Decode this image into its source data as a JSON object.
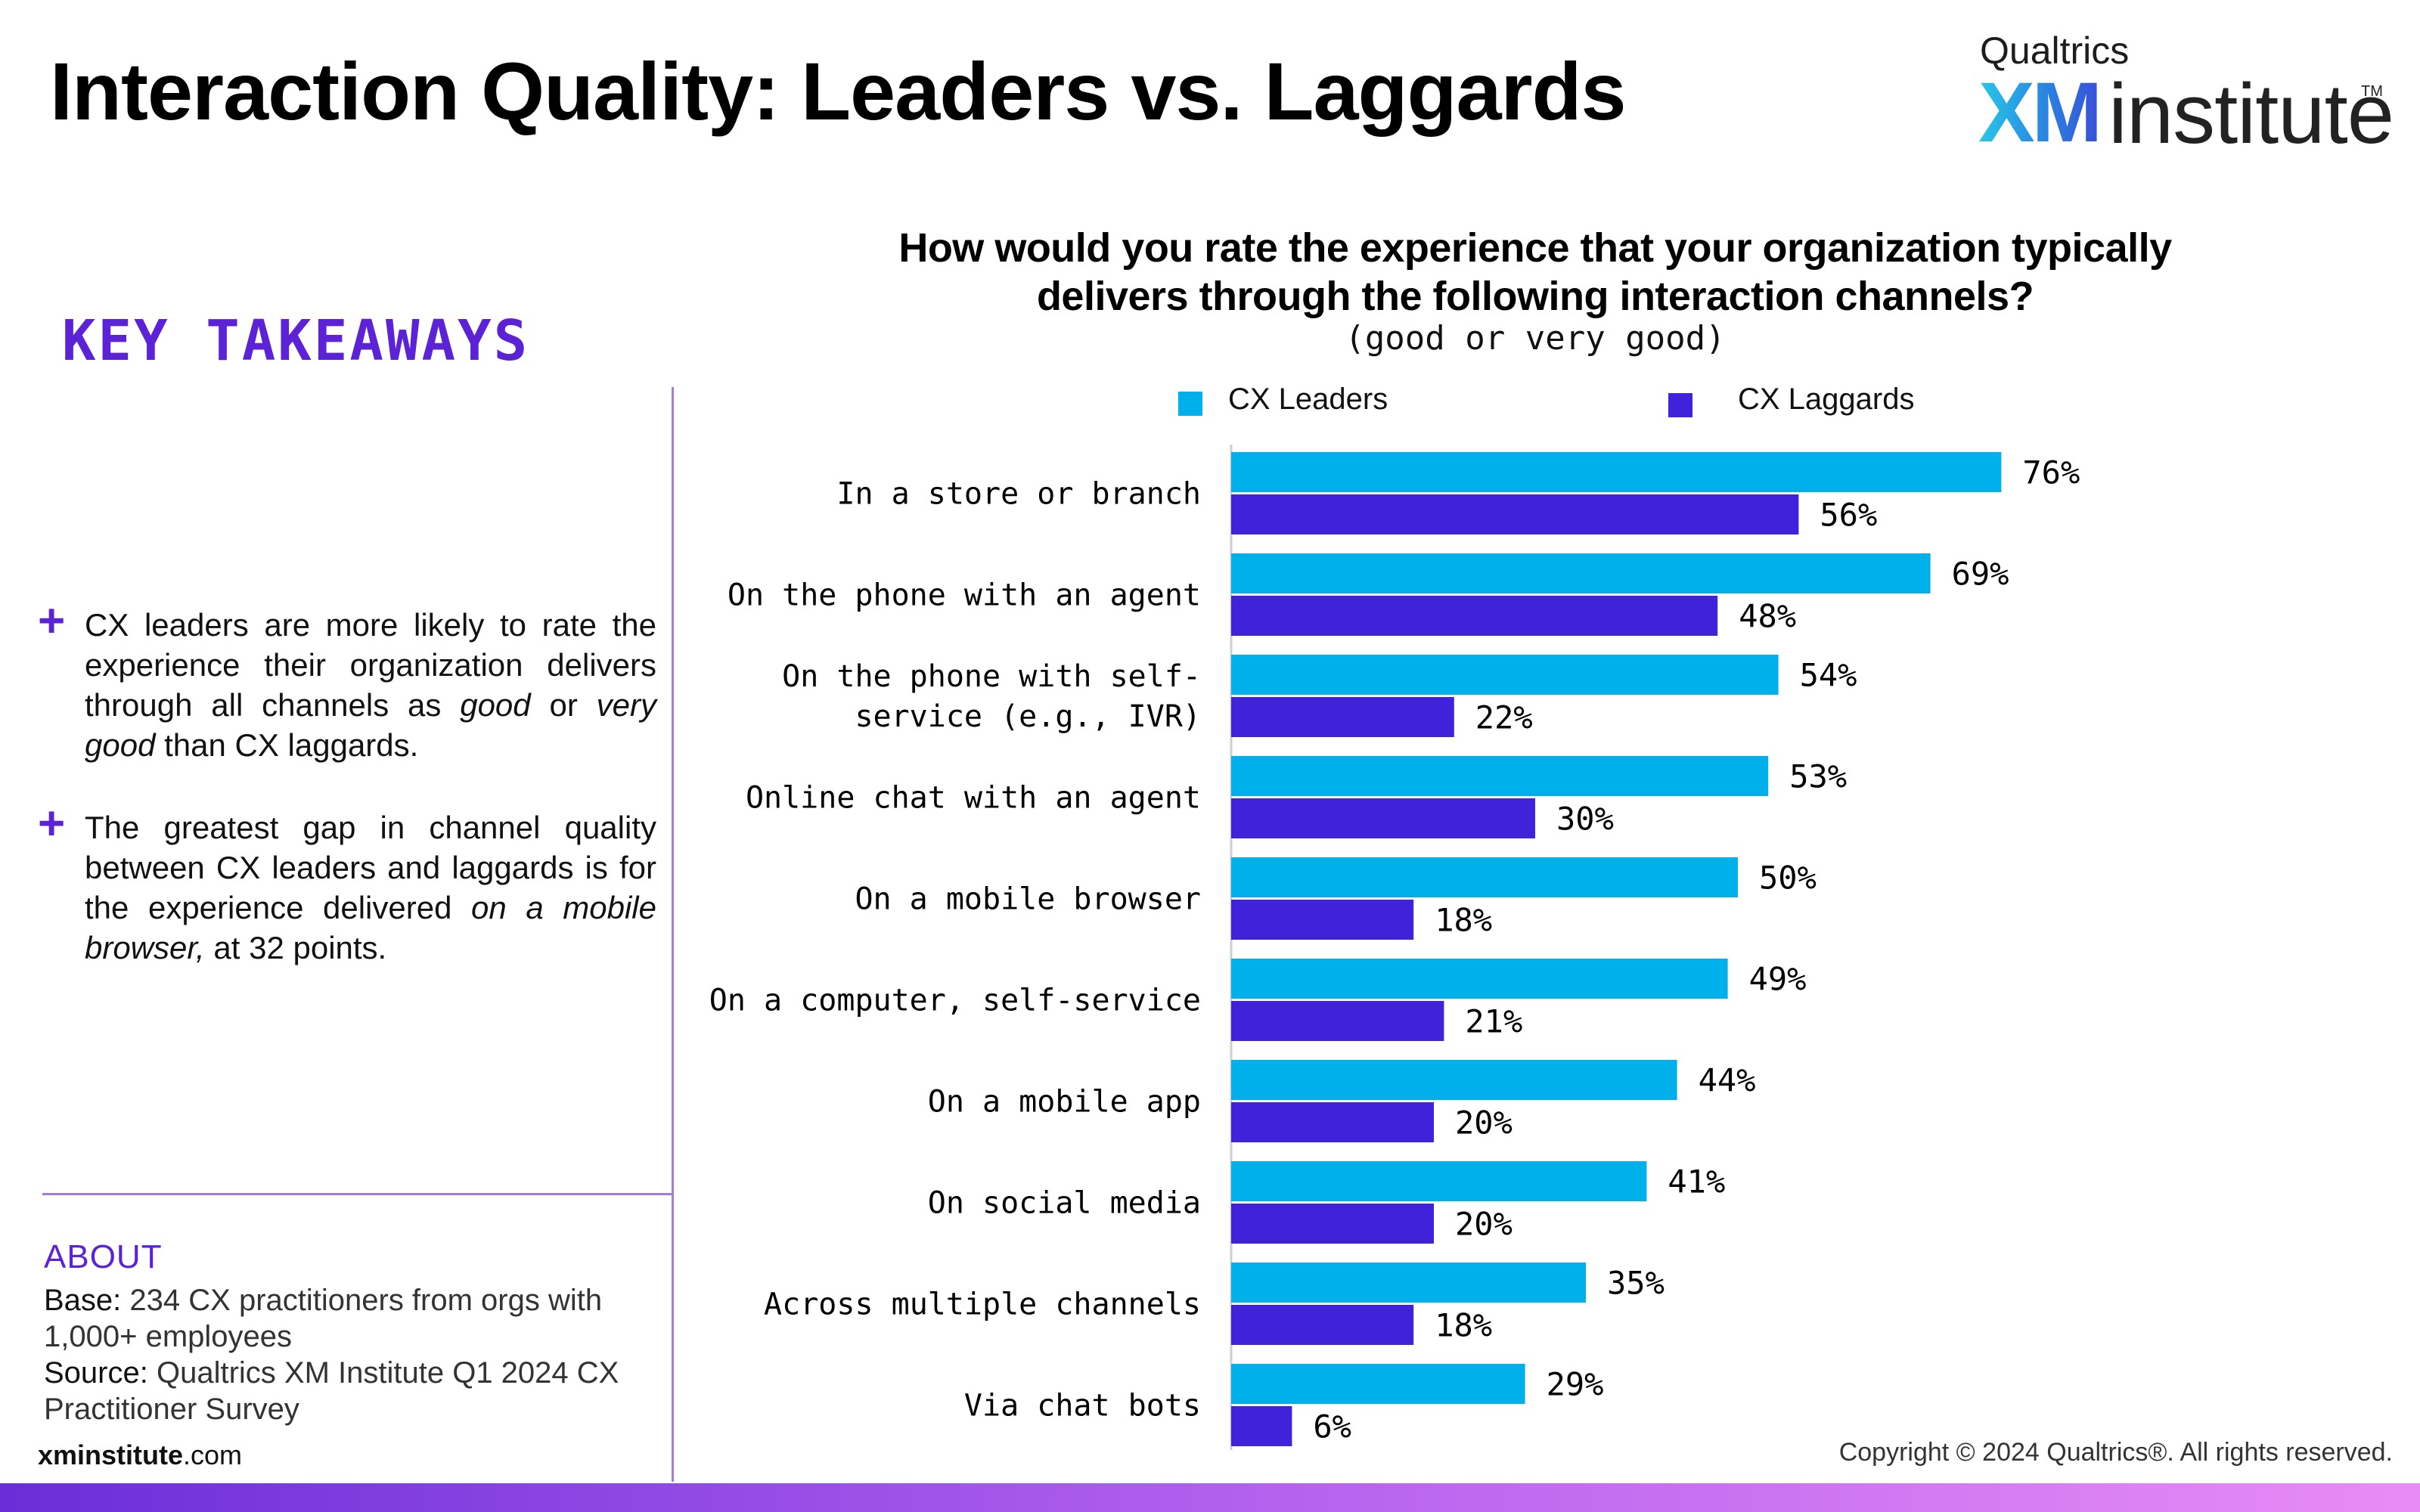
{
  "header": {
    "title": "Interaction Quality: Leaders vs. Laggards"
  },
  "logo": {
    "top": "Qualtrics",
    "xm": "XM",
    "institute": "institute",
    "tm": "TM"
  },
  "left_panel": {
    "heading": "KEY TAKEAWAYS",
    "plus": "+",
    "takeaways": [
      {
        "parts": [
          "CX leaders are more likely to rate the experience their organization delivers through all channels as ",
          "good",
          " or ",
          "very good",
          " than CX laggards."
        ]
      },
      {
        "parts": [
          "The greatest gap in channel quality between CX leaders and laggards is for the experience delivered ",
          "on a mobile browser,",
          " at 32 points."
        ]
      }
    ],
    "about": {
      "heading": "ABOUT",
      "base_label": "Base:",
      "base_text": " 234 CX practitioners from orgs with 1,000+ employees",
      "source_label": "Source:",
      "source_text": " Qualtrics XM Institute Q1 2024 CX Practitioner Survey"
    },
    "site": {
      "bold": "xminstitute",
      "rest": ".com"
    }
  },
  "footer": {
    "copyright": "Copyright © 2024 Qualtrics®. All rights reserved."
  },
  "colors": {
    "leaders": "#00b0ea",
    "laggards": "#3f22d9",
    "accent": "#5b22d6"
  },
  "chart_data": {
    "type": "bar",
    "orientation": "horizontal",
    "title": "How would you rate the experience that your organization typically delivers through the following interaction channels?",
    "subtitle": "(good or very good)",
    "legend_placement": "top",
    "categories": [
      "In a store or branch",
      "On the phone with an agent",
      "On the phone with self-service (e.g., IVR)",
      "Online chat with an agent",
      "On a mobile browser",
      "On a computer, self-service",
      "On a mobile app",
      "On social media",
      "Across multiple channels",
      "Via chat bots"
    ],
    "category_lines": [
      [
        "In a store or branch"
      ],
      [
        "On the phone with an agent"
      ],
      [
        "On the phone with self-",
        "service (e.g., IVR)"
      ],
      [
        "Online chat with an agent"
      ],
      [
        "On a mobile browser"
      ],
      [
        "On a computer, self-service"
      ],
      [
        "On a mobile app"
      ],
      [
        "On social media"
      ],
      [
        "Across multiple channels"
      ],
      [
        "Via chat bots"
      ]
    ],
    "series": [
      {
        "name": "CX Leaders",
        "values": [
          76,
          69,
          54,
          53,
          50,
          49,
          44,
          41,
          35,
          29
        ]
      },
      {
        "name": "CX Laggards",
        "values": [
          56,
          48,
          22,
          30,
          18,
          21,
          20,
          20,
          18,
          6
        ]
      }
    ],
    "value_suffix": "%",
    "xlim": [
      0,
      100
    ],
    "grid": false
  }
}
